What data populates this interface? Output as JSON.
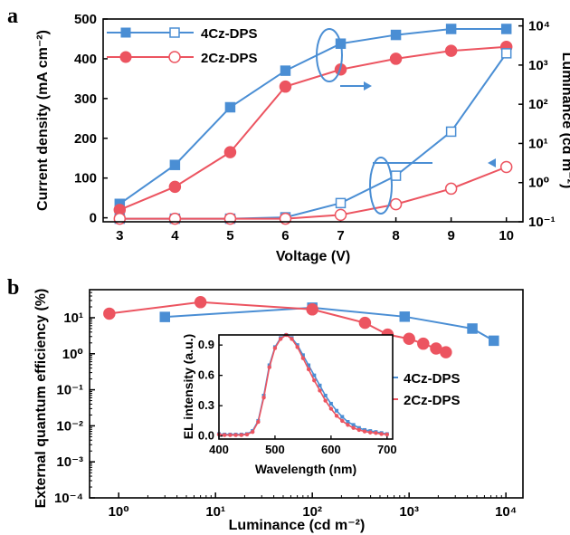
{
  "colors": {
    "blue": "#4A8ED4",
    "red": "#EC5460",
    "axis": "#000000"
  },
  "panel_a": {
    "label": "a",
    "chart_data": {
      "type": "line",
      "xlabel": "Voltage (V)",
      "ylabel_left": "Current density (mA cm⁻²)",
      "ylabel_right": "Luminance (cd m⁻²)",
      "xlim": [
        2.7,
        10.3
      ],
      "ylim_left": [
        -10,
        500
      ],
      "ylim_right_log": [
        0.1,
        15000
      ],
      "xticks": [
        3,
        4,
        5,
        6,
        7,
        8,
        9,
        10
      ],
      "yticks_left": [
        0,
        100,
        200,
        300,
        400,
        500
      ],
      "yticks_right": [
        "10⁻¹",
        "10⁰",
        "10¹",
        "10²",
        "10³",
        "10⁴"
      ],
      "legend": [
        "4Cz-DPS",
        "2Cz-DPS"
      ],
      "legend_position": "top-left",
      "series": [
        {
          "name": "4Cz-DPS",
          "quantity": "current density",
          "axis": "left",
          "marker": "filled-square",
          "color": "#4A8ED4",
          "x": [
            3,
            4,
            5,
            6,
            7,
            8,
            9,
            10
          ],
          "y": [
            35,
            133,
            278,
            370,
            438,
            460,
            475,
            475
          ]
        },
        {
          "name": "2Cz-DPS",
          "quantity": "current density",
          "axis": "left",
          "marker": "filled-circle",
          "color": "#EC5460",
          "x": [
            3,
            4,
            5,
            6,
            7,
            8,
            9,
            10
          ],
          "y": [
            20,
            78,
            165,
            330,
            373,
            400,
            420,
            430
          ]
        },
        {
          "name": "4Cz-DPS",
          "quantity": "luminance",
          "axis": "right",
          "marker": "open-square",
          "color": "#4A8ED4",
          "x": [
            3,
            4,
            5,
            6,
            7,
            8,
            9,
            10
          ],
          "y": [
            0.12,
            0.12,
            0.12,
            0.13,
            0.3,
            1.5,
            20,
            2000
          ]
        },
        {
          "name": "2Cz-DPS",
          "quantity": "luminance",
          "axis": "right",
          "marker": "open-circle",
          "color": "#EC5460",
          "x": [
            3,
            4,
            5,
            6,
            7,
            8,
            9,
            10
          ],
          "y": [
            0.12,
            0.12,
            0.12,
            0.12,
            0.15,
            0.28,
            0.7,
            2.5
          ]
        }
      ],
      "annotations": [
        {
          "type": "ellipse-with-arrow",
          "target": "current density curves at 7 V",
          "arrow": "right"
        },
        {
          "type": "ellipse-with-arrow",
          "target": "luminance curves at 8 V",
          "arrow": "left"
        }
      ]
    }
  },
  "panel_b": {
    "label": "b",
    "chart_data": {
      "type": "line",
      "xlabel": "Luminance (cd m⁻²)",
      "ylabel": "External quantum efficiency (%)",
      "xscale": "log",
      "yscale": "log",
      "xlim": [
        0.5,
        15000
      ],
      "ylim": [
        0.0001,
        60
      ],
      "xticks": [
        "10⁰",
        "10¹",
        "10²",
        "10³",
        "10⁴"
      ],
      "yticks": [
        "10⁻⁴",
        "10⁻³",
        "10⁻²",
        "10⁻¹",
        "10⁰",
        "10¹"
      ],
      "legend": [
        "4Cz-DPS",
        "2Cz-DPS"
      ],
      "legend_position": "right",
      "series": [
        {
          "name": "4Cz-DPS",
          "marker": "filled-square",
          "color": "#4A8ED4",
          "x": [
            3,
            100,
            900,
            4500,
            7500
          ],
          "y": [
            10.5,
            19,
            10.7,
            5,
            2.3
          ]
        },
        {
          "name": "2Cz-DPS",
          "marker": "filled-circle",
          "color": "#EC5460",
          "x": [
            0.8,
            7,
            100,
            350,
            600,
            1000,
            1400,
            1900,
            2400
          ],
          "y": [
            13,
            27,
            17,
            7.2,
            3.4,
            2.6,
            1.9,
            1.4,
            1.1
          ]
        }
      ]
    }
  },
  "inset": {
    "chart_data": {
      "type": "line",
      "xlabel": "Wavelength (nm)",
      "ylabel": "EL intensity (a.u.)",
      "xlim": [
        400,
        710
      ],
      "ylim": [
        -0.03,
        1.0
      ],
      "xticks": [
        400,
        500,
        600,
        700
      ],
      "yticks": [
        "0.0",
        "0.3",
        "0.6",
        "0.9"
      ],
      "spectrum_peak_nm": {
        "4Cz-DPS": 522,
        "2Cz-DPS": 520
      },
      "series": [
        {
          "name": "4Cz-DPS",
          "color": "#4A8ED4",
          "x": [
            400,
            410,
            420,
            430,
            440,
            450,
            460,
            470,
            480,
            490,
            500,
            510,
            520,
            530,
            540,
            550,
            560,
            570,
            580,
            590,
            600,
            610,
            620,
            630,
            640,
            650,
            660,
            670,
            680,
            690,
            700
          ],
          "y": [
            0.02,
            0.015,
            0.015,
            0.015,
            0.015,
            0.02,
            0.05,
            0.15,
            0.4,
            0.7,
            0.88,
            0.97,
            1.0,
            0.97,
            0.9,
            0.8,
            0.7,
            0.6,
            0.5,
            0.4,
            0.32,
            0.25,
            0.19,
            0.14,
            0.11,
            0.08,
            0.06,
            0.05,
            0.04,
            0.03,
            0.02
          ]
        },
        {
          "name": "2Cz-DPS",
          "color": "#EC5460",
          "x": [
            400,
            410,
            420,
            430,
            440,
            450,
            460,
            470,
            480,
            490,
            500,
            510,
            520,
            530,
            540,
            550,
            560,
            570,
            580,
            590,
            600,
            610,
            620,
            630,
            640,
            650,
            660,
            670,
            680,
            690,
            700
          ],
          "y": [
            0.015,
            0.01,
            0.01,
            0.01,
            0.01,
            0.015,
            0.04,
            0.14,
            0.38,
            0.68,
            0.87,
            0.96,
            1.0,
            0.96,
            0.88,
            0.77,
            0.66,
            0.55,
            0.45,
            0.35,
            0.27,
            0.2,
            0.15,
            0.11,
            0.08,
            0.06,
            0.045,
            0.035,
            0.03,
            0.02,
            0.015
          ]
        }
      ]
    }
  }
}
